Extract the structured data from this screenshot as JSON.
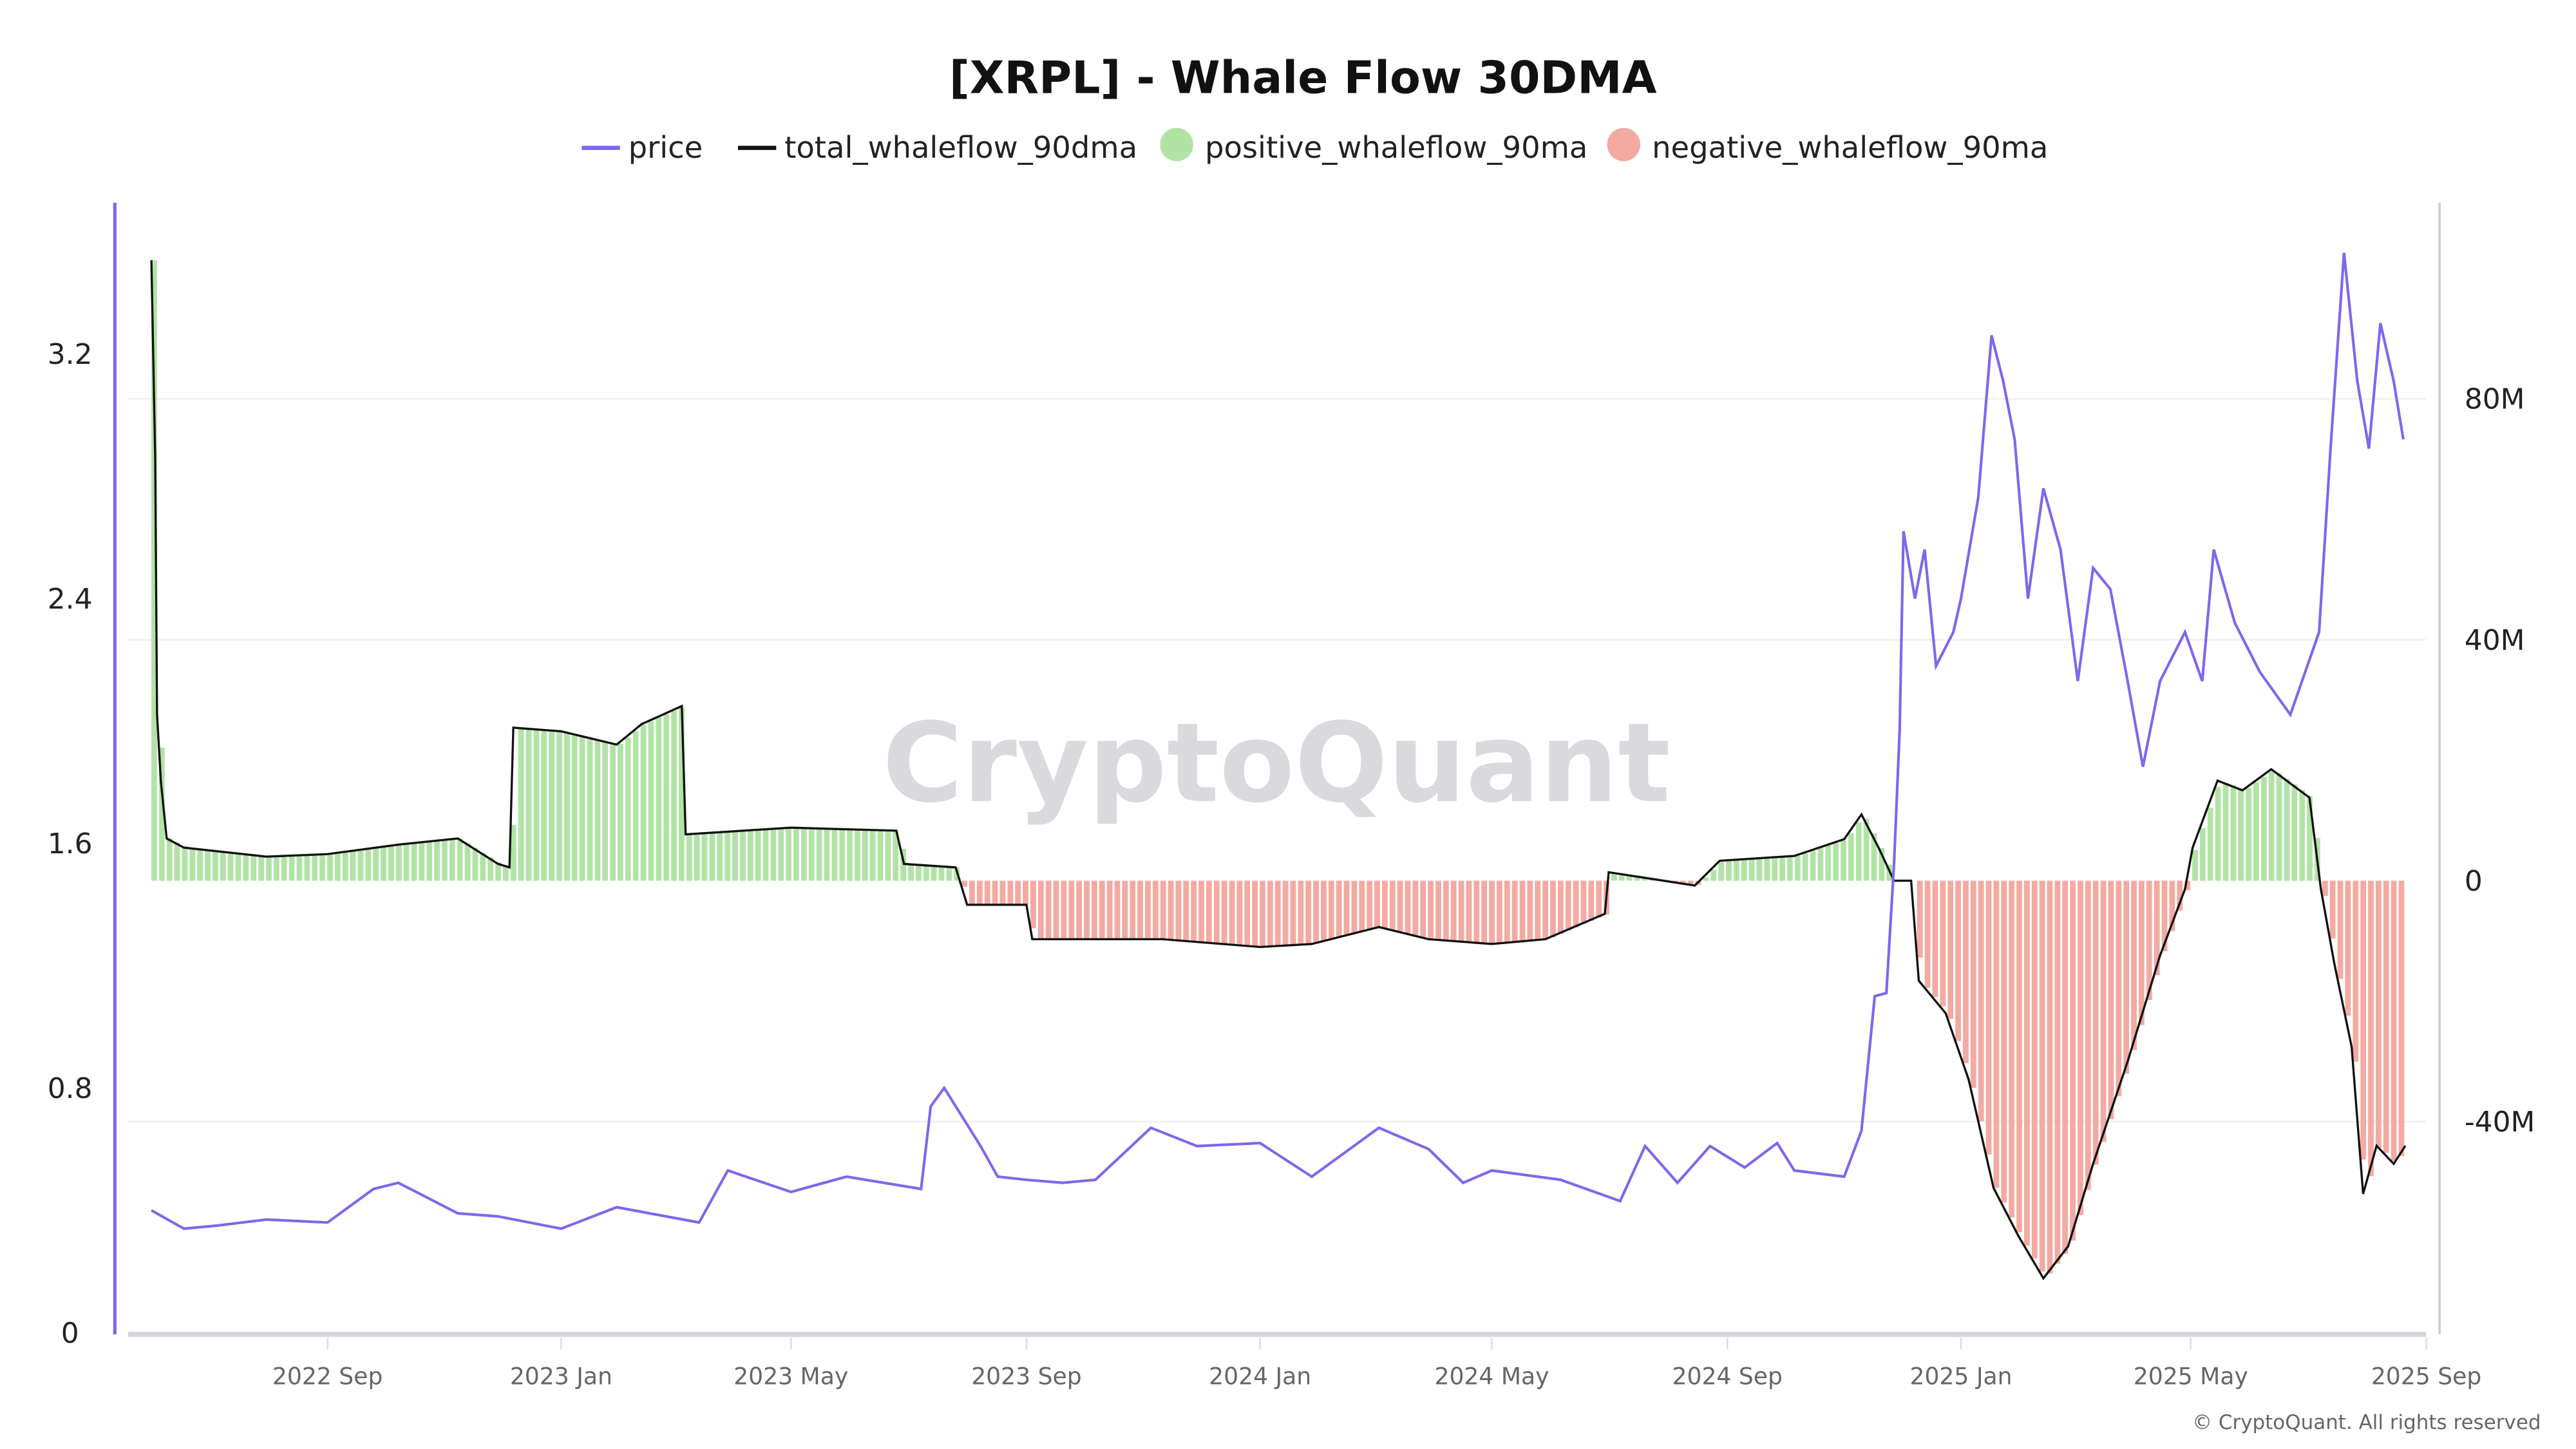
{
  "chart_data": {
    "type": "line+bar",
    "title": "[XRPL] - Whale Flow 30DMA",
    "legend": {
      "placement": "top",
      "entries": [
        "price",
        "total_whaleflow_90dma",
        "positive_whaleflow_90ma",
        "negative_whaleflow_90ma"
      ]
    },
    "watermark": "CryptoQuant",
    "copyright": "© CryptoQuant. All rights reserved",
    "colors": {
      "price": "#7b68ee",
      "total": "#111111",
      "positive": "#b2e3a6",
      "negative": "#f2aaa2"
    },
    "x_ticks": [
      "2022 Sep",
      "2023 Jan",
      "2023 May",
      "2023 Sep",
      "2024 Jan",
      "2024 May",
      "2024 Sep",
      "2025 Jan",
      "2025 May",
      "2025 Sep"
    ],
    "x_tick_dates": [
      "2022-09-01",
      "2023-01-01",
      "2023-05-01",
      "2023-09-01",
      "2024-01-01",
      "2024-05-01",
      "2024-09-01",
      "2025-01-01",
      "2025-05-01",
      "2025-09-01"
    ],
    "y_left": {
      "ticks": [
        "0",
        "0.8",
        "1.6",
        "2.4",
        "3.2"
      ],
      "range": [
        0,
        3.6
      ]
    },
    "y_right": {
      "ticks": [
        "-40M",
        "0",
        "40M",
        "80M"
      ],
      "range": [
        -75,
        105
      ],
      "unit": "M"
    },
    "grid": "horizontal",
    "price": [
      [
        "2022-06-01",
        0.4
      ],
      [
        "2022-06-18",
        0.34
      ],
      [
        "2022-07-05",
        0.35
      ],
      [
        "2022-07-31",
        0.37
      ],
      [
        "2022-09-01",
        0.36
      ],
      [
        "2022-09-25",
        0.47
      ],
      [
        "2022-10-08",
        0.49
      ],
      [
        "2022-11-08",
        0.39
      ],
      [
        "2022-11-29",
        0.38
      ],
      [
        "2023-01-01",
        0.34
      ],
      [
        "2023-01-30",
        0.41
      ],
      [
        "2023-03-14",
        0.36
      ],
      [
        "2023-03-29",
        0.53
      ],
      [
        "2023-05-01",
        0.46
      ],
      [
        "2023-05-30",
        0.51
      ],
      [
        "2023-07-08",
        0.47
      ],
      [
        "2023-07-13",
        0.74
      ],
      [
        "2023-07-20",
        0.8
      ],
      [
        "2023-08-08",
        0.61
      ],
      [
        "2023-08-17",
        0.51
      ],
      [
        "2023-09-01",
        0.5
      ],
      [
        "2023-09-20",
        0.49
      ],
      [
        "2023-10-07",
        0.5
      ],
      [
        "2023-11-05",
        0.67
      ],
      [
        "2023-11-29",
        0.61
      ],
      [
        "2024-01-01",
        0.62
      ],
      [
        "2024-01-28",
        0.51
      ],
      [
        "2024-03-03",
        0.67
      ],
      [
        "2024-03-29",
        0.6
      ],
      [
        "2024-04-16",
        0.49
      ],
      [
        "2024-05-01",
        0.53
      ],
      [
        "2024-06-06",
        0.5
      ],
      [
        "2024-07-07",
        0.43
      ],
      [
        "2024-07-20",
        0.61
      ],
      [
        "2024-08-06",
        0.49
      ],
      [
        "2024-08-23",
        0.61
      ],
      [
        "2024-09-10",
        0.54
      ],
      [
        "2024-09-27",
        0.62
      ],
      [
        "2024-10-06",
        0.53
      ],
      [
        "2024-11-01",
        0.51
      ],
      [
        "2024-11-10",
        0.66
      ],
      [
        "2024-11-17",
        1.1
      ],
      [
        "2024-11-23",
        1.11
      ],
      [
        "2024-11-27",
        1.53
      ],
      [
        "2024-11-30",
        1.97
      ],
      [
        "2024-12-02",
        2.62
      ],
      [
        "2024-12-08",
        2.4
      ],
      [
        "2024-12-13",
        2.56
      ],
      [
        "2024-12-19",
        2.18
      ],
      [
        "2024-12-28",
        2.29
      ],
      [
        "2025-01-01",
        2.4
      ],
      [
        "2025-01-10",
        2.73
      ],
      [
        "2025-01-17",
        3.26
      ],
      [
        "2025-01-23",
        3.11
      ],
      [
        "2025-01-29",
        2.92
      ],
      [
        "2025-02-05",
        2.4
      ],
      [
        "2025-02-13",
        2.76
      ],
      [
        "2025-02-22",
        2.56
      ],
      [
        "2025-03-03",
        2.13
      ],
      [
        "2025-03-11",
        2.5
      ],
      [
        "2025-03-20",
        2.43
      ],
      [
        "2025-03-29",
        2.13
      ],
      [
        "2025-04-06",
        1.85
      ],
      [
        "2025-04-15",
        2.13
      ],
      [
        "2025-04-28",
        2.29
      ],
      [
        "2025-05-07",
        2.13
      ],
      [
        "2025-05-13",
        2.56
      ],
      [
        "2025-05-24",
        2.32
      ],
      [
        "2025-06-06",
        2.16
      ],
      [
        "2025-06-22",
        2.02
      ],
      [
        "2025-07-07",
        2.29
      ],
      [
        "2025-07-13",
        2.89
      ],
      [
        "2025-07-20",
        3.53
      ],
      [
        "2025-07-27",
        3.11
      ],
      [
        "2025-08-02",
        2.89
      ],
      [
        "2025-08-08",
        3.3
      ],
      [
        "2025-08-15",
        3.11
      ],
      [
        "2025-08-20",
        2.92
      ]
    ],
    "total_whaleflow_90dma": [
      [
        "2022-06-01",
        103
      ],
      [
        "2022-06-03",
        70
      ],
      [
        "2022-06-04",
        27.6
      ],
      [
        "2022-06-06",
        16.5
      ],
      [
        "2022-06-09",
        7
      ],
      [
        "2022-06-18",
        5.5
      ],
      [
        "2022-07-31",
        4
      ],
      [
        "2022-09-01",
        4.4
      ],
      [
        "2022-10-08",
        6
      ],
      [
        "2022-11-08",
        7
      ],
      [
        "2022-11-29",
        2.8
      ],
      [
        "2022-12-05",
        2.2
      ],
      [
        "2022-12-07",
        25.4
      ],
      [
        "2023-01-01",
        24.8
      ],
      [
        "2023-01-30",
        22.6
      ],
      [
        "2023-02-12",
        26
      ],
      [
        "2023-03-05",
        29
      ],
      [
        "2023-03-07",
        7.7
      ],
      [
        "2023-05-01",
        8.8
      ],
      [
        "2023-06-25",
        8.3
      ],
      [
        "2023-06-29",
        2.8
      ],
      [
        "2023-07-26",
        2.2
      ],
      [
        "2023-08-01",
        -4
      ],
      [
        "2023-09-01",
        -4
      ],
      [
        "2023-09-04",
        -9.7
      ],
      [
        "2023-11-11",
        -9.7
      ],
      [
        "2024-01-01",
        -11
      ],
      [
        "2024-01-28",
        -10.5
      ],
      [
        "2024-03-03",
        -7.7
      ],
      [
        "2024-03-29",
        -9.7
      ],
      [
        "2024-05-01",
        -10.5
      ],
      [
        "2024-05-29",
        -9.7
      ],
      [
        "2024-06-29",
        -5.5
      ],
      [
        "2024-07-01",
        1.4
      ],
      [
        "2024-08-15",
        -0.8
      ],
      [
        "2024-08-28",
        3.3
      ],
      [
        "2024-10-06",
        4.1
      ],
      [
        "2024-11-01",
        6.9
      ],
      [
        "2024-11-10",
        11
      ],
      [
        "2024-11-19",
        5.5
      ],
      [
        "2024-11-27",
        0
      ],
      [
        "2024-12-06",
        0
      ],
      [
        "2024-12-10",
        -16.6
      ],
      [
        "2024-12-24",
        -22
      ],
      [
        "2025-01-05",
        -33
      ],
      [
        "2025-01-18",
        -51
      ],
      [
        "2025-01-31",
        -59
      ],
      [
        "2025-02-13",
        -66
      ],
      [
        "2025-02-26",
        -60.7
      ],
      [
        "2025-03-11",
        -47
      ],
      [
        "2025-03-29",
        -30
      ],
      [
        "2025-04-15",
        -12.4
      ],
      [
        "2025-04-28",
        -1.4
      ],
      [
        "2025-05-02",
        5.5
      ],
      [
        "2025-05-15",
        16.6
      ],
      [
        "2025-05-28",
        15
      ],
      [
        "2025-06-12",
        18.5
      ],
      [
        "2025-07-02",
        13.8
      ],
      [
        "2025-07-08",
        -1.4
      ],
      [
        "2025-07-15",
        -13.8
      ],
      [
        "2025-07-24",
        -27.6
      ],
      [
        "2025-07-30",
        -52
      ],
      [
        "2025-08-06",
        -44
      ],
      [
        "2025-08-15",
        -47
      ],
      [
        "2025-08-21",
        -44
      ]
    ]
  }
}
